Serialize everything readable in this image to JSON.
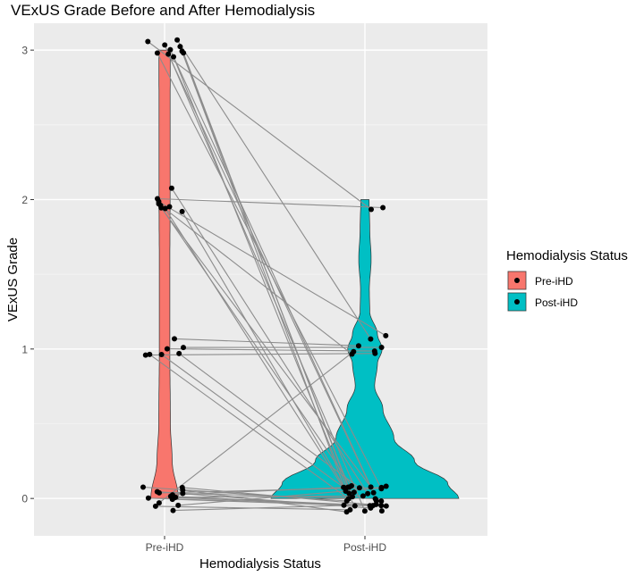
{
  "chart_data": {
    "type": "violin",
    "title": "VExUS Grade Before and After Hemodialysis",
    "xlabel": "Hemodialysis Status",
    "ylabel": "VExUS Grade",
    "categories": [
      "Pre-iHD",
      "Post-iHD"
    ],
    "ylim": [
      -0.25,
      3.18
    ],
    "yticks": [
      0,
      1,
      2,
      3
    ],
    "grid": true,
    "legend": {
      "title": "Hemodialysis Status",
      "position": "right",
      "entries": [
        {
          "label": "Pre-iHD",
          "color": "#F8766D"
        },
        {
          "label": "Post-iHD",
          "color": "#00BFC4"
        }
      ]
    },
    "series": [
      {
        "name": "Pre-iHD",
        "color": "#F8766D",
        "violin_profile": [
          [
            0,
            1.0
          ],
          [
            0.25,
            0.55
          ],
          [
            0.5,
            0.42
          ],
          [
            1.0,
            0.38
          ],
          [
            1.5,
            0.38
          ],
          [
            2.0,
            0.4
          ],
          [
            2.5,
            0.4
          ],
          [
            3.0,
            0.41
          ]
        ],
        "grade_counts": {
          "0": 16,
          "1": 7,
          "2": 9,
          "3": 10
        }
      },
      {
        "name": "Post-iHD",
        "color": "#00BFC4",
        "violin_profile": [
          [
            0,
            6.8
          ],
          [
            0.1,
            6.0
          ],
          [
            0.25,
            3.6
          ],
          [
            0.4,
            2.1
          ],
          [
            0.6,
            1.3
          ],
          [
            0.75,
            0.7
          ],
          [
            0.9,
            0.9
          ],
          [
            1.0,
            1.25
          ],
          [
            1.1,
            0.9
          ],
          [
            1.25,
            0.35
          ],
          [
            1.4,
            0.32
          ],
          [
            1.6,
            0.45
          ],
          [
            1.8,
            0.35
          ],
          [
            2.0,
            0.3
          ]
        ],
        "grade_counts": {
          "0": 35,
          "1": 8,
          "2": 2
        }
      }
    ],
    "paired_transitions": [
      {
        "from": 0,
        "to": 0,
        "count": 15
      },
      {
        "from": 0,
        "to": 1,
        "count": 1
      },
      {
        "from": 1,
        "to": 0,
        "count": 3
      },
      {
        "from": 1,
        "to": 1,
        "count": 4
      },
      {
        "from": 2,
        "to": 0,
        "count": 5
      },
      {
        "from": 2,
        "to": 1,
        "count": 2
      },
      {
        "from": 2,
        "to": 2,
        "count": 1
      },
      {
        "from": 3,
        "to": 0,
        "count": 8
      },
      {
        "from": 3,
        "to": 1,
        "count": 1
      },
      {
        "from": 3,
        "to": 2,
        "count": 1
      }
    ]
  }
}
